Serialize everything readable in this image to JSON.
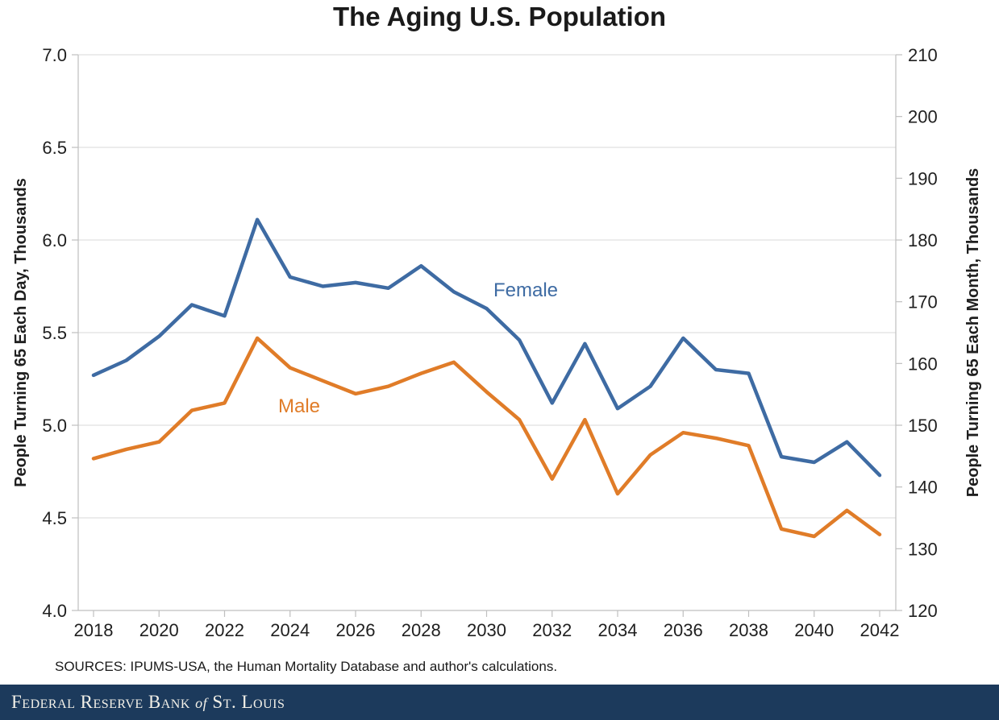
{
  "title": "The Aging U.S. Population",
  "source_note": "SOURCES: IPUMS-USA, the Human Mortality Database and author's calculations.",
  "footer": {
    "name_prefix": "Federal Reserve Bank ",
    "of_word": "of",
    "name_suffix": " St. Louis",
    "background_color": "#1C3A5C",
    "text_color": "#F2F0E8"
  },
  "chart_data": {
    "type": "line",
    "title": "The Aging U.S. Population",
    "x": [
      2018,
      2019,
      2020,
      2021,
      2022,
      2023,
      2024,
      2025,
      2026,
      2027,
      2028,
      2029,
      2030,
      2031,
      2032,
      2033,
      2034,
      2035,
      2036,
      2037,
      2038,
      2039,
      2040,
      2041,
      2042
    ],
    "x_tick_labels": [
      "2018",
      "2020",
      "2022",
      "2024",
      "2026",
      "2028",
      "2030",
      "2032",
      "2034",
      "2036",
      "2038",
      "2040",
      "2042"
    ],
    "series": [
      {
        "name": "Female",
        "color": "#3E6BA3",
        "values": [
          5.27,
          5.35,
          5.48,
          5.65,
          5.59,
          6.11,
          5.8,
          5.75,
          5.77,
          5.74,
          5.86,
          5.72,
          5.63,
          5.46,
          5.12,
          5.44,
          5.09,
          5.21,
          5.47,
          5.3,
          5.28,
          4.83,
          4.8,
          4.91,
          4.73
        ],
        "label_pos": {
          "x": 612,
          "y": 368
        }
      },
      {
        "name": "Male",
        "color": "#E07C28",
        "values": [
          4.82,
          4.87,
          4.91,
          5.08,
          5.12,
          5.47,
          5.31,
          5.24,
          5.17,
          5.21,
          5.28,
          5.34,
          5.18,
          5.03,
          4.71,
          5.03,
          4.63,
          4.84,
          4.96,
          4.93,
          4.89,
          4.44,
          4.4,
          4.54,
          4.41
        ],
        "label_pos": {
          "x": 345,
          "y": 512
        }
      }
    ],
    "left_axis": {
      "label": "People Turning 65 Each Day, Thousands",
      "min": 4.0,
      "max": 7.0,
      "step": 0.5,
      "ticks": [
        "7.0",
        "6.5",
        "6.0",
        "5.5",
        "5.0",
        "4.5",
        "4.0"
      ]
    },
    "right_axis": {
      "label": "People Turning 65 Each Month, Thousands",
      "min": 120,
      "max": 210,
      "step": 10,
      "ticks": [
        "210",
        "200",
        "190",
        "180",
        "170",
        "160",
        "150",
        "140",
        "130",
        "120"
      ]
    },
    "grid": true,
    "legend_position": "inline-series-labels",
    "colors": {
      "grid": "#D9D9D9",
      "axis": "#BFBFBF",
      "tick_text": "#1f1f1f",
      "axis_title_text": "#1f1f1f"
    }
  }
}
